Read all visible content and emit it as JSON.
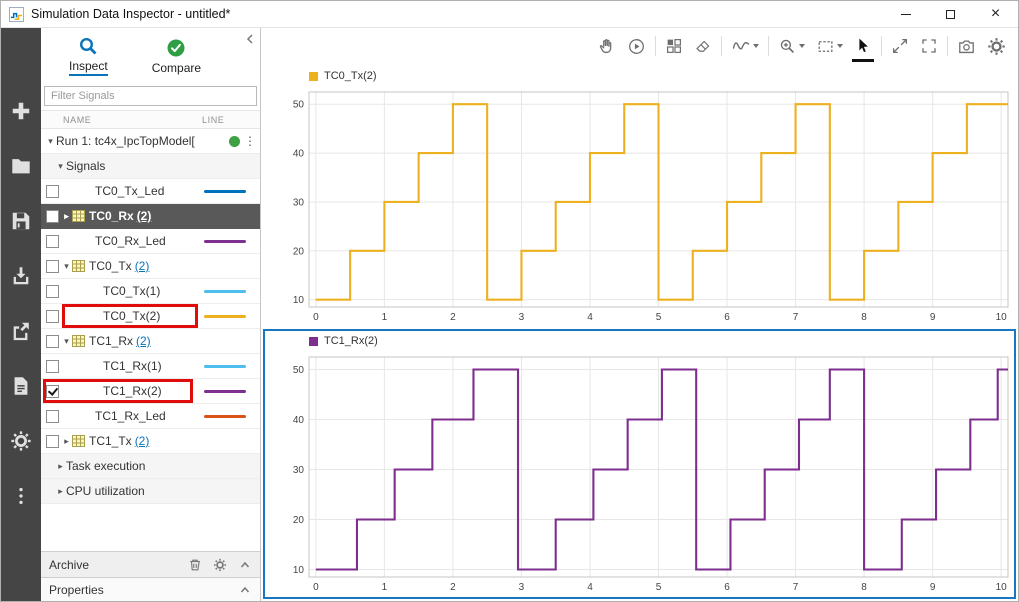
{
  "window": {
    "title": "Simulation Data Inspector - untitled*",
    "controls": [
      "minimize",
      "maximize",
      "close"
    ]
  },
  "left_toolbar": {
    "icons": [
      "add-icon",
      "open-icon",
      "save-icon",
      "import-icon",
      "export-icon",
      "report-icon",
      "preferences-icon",
      "more-icon"
    ]
  },
  "sidebar": {
    "tabs": [
      {
        "label": "Inspect",
        "icon": "search-icon",
        "active": true
      },
      {
        "label": "Compare",
        "icon": "check-circle-icon",
        "active": false
      }
    ],
    "filter": {
      "placeholder": "Filter Signals"
    },
    "columns": {
      "name": "NAME",
      "line": "LINE"
    },
    "rows": [
      {
        "kind": "run",
        "label": "Run 1: tc4x_IpcTopModel[",
        "expander": "down",
        "status_color": "#3fa142"
      },
      {
        "kind": "group",
        "label": "Signals",
        "expander": "down"
      },
      {
        "kind": "signal",
        "label": "TC0_Tx_Led",
        "indent": 2,
        "checkbox": true,
        "checked": false,
        "line_color": "#0072BD"
      },
      {
        "kind": "parent",
        "label": "TC0_Rx",
        "count": "(2)",
        "indent": 1,
        "checkbox": true,
        "checked": false,
        "expander": "right",
        "selected": true
      },
      {
        "kind": "signal",
        "label": "TC0_Rx_Led",
        "indent": 2,
        "checkbox": true,
        "checked": false,
        "line_color": "#7E2F8E"
      },
      {
        "kind": "parent",
        "label": "TC0_Tx",
        "count": "(2)",
        "indent": 1,
        "checkbox": true,
        "checked": false,
        "expander": "down"
      },
      {
        "kind": "signal",
        "label": "TC0_Tx(1)",
        "indent": 3,
        "checkbox": true,
        "checked": false,
        "line_color": "#4DBEEE"
      },
      {
        "kind": "signal",
        "label": "TC0_Tx(2)",
        "indent": 3,
        "checkbox": true,
        "checked": false,
        "line_color": "#EDB120",
        "annotation": "name"
      },
      {
        "kind": "parent",
        "label": "TC1_Rx",
        "count": "(2)",
        "indent": 1,
        "checkbox": true,
        "checked": false,
        "expander": "down"
      },
      {
        "kind": "signal",
        "label": "TC1_Rx(1)",
        "indent": 3,
        "checkbox": true,
        "checked": false,
        "line_color": "#4DBEEE"
      },
      {
        "kind": "signal",
        "label": "TC1_Rx(2)",
        "indent": 3,
        "checkbox": true,
        "checked": true,
        "line_color": "#7E2F8E",
        "annotation": "full"
      },
      {
        "kind": "signal",
        "label": "TC1_Rx_Led",
        "indent": 2,
        "checkbox": true,
        "checked": false,
        "line_color": "#D95319"
      },
      {
        "kind": "parent",
        "label": "TC1_Tx",
        "count": "(2)",
        "indent": 1,
        "checkbox": true,
        "checked": false,
        "expander": "right"
      },
      {
        "kind": "group",
        "label": "Task execution",
        "expander": "right"
      },
      {
        "kind": "group",
        "label": "CPU utilization",
        "expander": "right"
      }
    ],
    "archive": {
      "label": "Archive",
      "icons": [
        "trash-icon",
        "gear-icon",
        "collapse-up-icon"
      ]
    },
    "properties": {
      "label": "Properties",
      "icons": [
        "collapse-up-icon"
      ]
    },
    "annotation_color": "#e00b0b"
  },
  "plot_toolbar": {
    "icons": [
      "pan-hand-icon",
      "replay-icon",
      "layout-grid-icon",
      "eraser-icon",
      "signal-wave-icon",
      "zoom-in-icon",
      "zoom-region-icon",
      "pointer-icon",
      "fit-to-view-icon",
      "fullscreen-icon",
      "snapshot-camera-icon",
      "settings-gear-icon"
    ],
    "active_tool": "pointer"
  },
  "chart_data": [
    {
      "type": "step-line",
      "title": "TC0_Tx(2)",
      "color": "#EDB120",
      "xlim": [
        -0.1,
        10.1
      ],
      "ylim": [
        8.5,
        52.5
      ],
      "xticks": [
        0,
        1,
        2,
        3,
        4,
        5,
        6,
        7,
        8,
        9,
        10
      ],
      "yticks": [
        10,
        20,
        30,
        40,
        50
      ],
      "grid": true,
      "legend_position": "top-left",
      "selected": false,
      "steps": [
        [
          0,
          10
        ],
        [
          0.5,
          20
        ],
        [
          1,
          30
        ],
        [
          1.5,
          40
        ],
        [
          2,
          50
        ],
        [
          2.5,
          10
        ],
        [
          3,
          20
        ],
        [
          3.5,
          30
        ],
        [
          4,
          40
        ],
        [
          4.5,
          50
        ],
        [
          5,
          10
        ],
        [
          5.5,
          20
        ],
        [
          6,
          30
        ],
        [
          6.5,
          40
        ],
        [
          7,
          50
        ],
        [
          7.5,
          10
        ],
        [
          8,
          20
        ],
        [
          8.5,
          30
        ],
        [
          9,
          40
        ],
        [
          9.5,
          50
        ]
      ]
    },
    {
      "type": "step-line",
      "title": "TC1_Rx(2)",
      "color": "#7E2F8E",
      "xlim": [
        -0.1,
        10.1
      ],
      "ylim": [
        8.5,
        52.5
      ],
      "xticks": [
        0,
        1,
        2,
        3,
        4,
        5,
        6,
        7,
        8,
        9,
        10
      ],
      "yticks": [
        10,
        20,
        30,
        40,
        50
      ],
      "grid": true,
      "legend_position": "top-left",
      "selected": true,
      "steps": [
        [
          0,
          10
        ],
        [
          0.6,
          20
        ],
        [
          1.15,
          30
        ],
        [
          1.7,
          40
        ],
        [
          2.3,
          50
        ],
        [
          2.95,
          10
        ],
        [
          3.5,
          20
        ],
        [
          4.05,
          30
        ],
        [
          4.55,
          40
        ],
        [
          5.05,
          50
        ],
        [
          5.55,
          10
        ],
        [
          6.05,
          20
        ],
        [
          6.55,
          30
        ],
        [
          7.05,
          40
        ],
        [
          7.5,
          50
        ],
        [
          8.0,
          10
        ],
        [
          8.55,
          20
        ],
        [
          9.05,
          30
        ],
        [
          9.55,
          40
        ],
        [
          9.95,
          50
        ]
      ]
    }
  ]
}
